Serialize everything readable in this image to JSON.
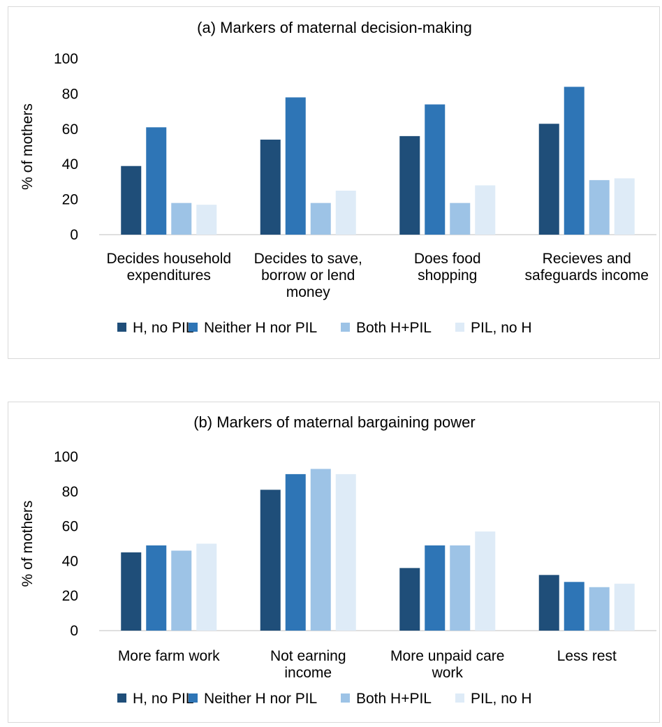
{
  "colors": {
    "series": [
      "#1f4e79",
      "#2e75b6",
      "#9dc3e6",
      "#deebf7"
    ],
    "axis": "#bfbfbf",
    "border": "#d9d9d9"
  },
  "chart_data": [
    {
      "type": "bar",
      "title": "(a) Markers of maternal decision-making",
      "ylabel": "% of mothers",
      "xlabel": "",
      "ylim": [
        0,
        100
      ],
      "yticks": [
        0,
        20,
        40,
        60,
        80,
        100
      ],
      "grid": false,
      "legend": "bottom",
      "categories": [
        [
          "Decides household",
          "expenditures"
        ],
        [
          "Decides to save,",
          "borrow or lend",
          "money"
        ],
        [
          "Does food",
          "shopping"
        ],
        [
          "Recieves and",
          "safeguards income"
        ]
      ],
      "series": [
        {
          "name": "H, no PIL",
          "values": [
            39,
            54,
            56,
            63
          ]
        },
        {
          "name": "Neither H nor PIL",
          "values": [
            61,
            78,
            74,
            84
          ]
        },
        {
          "name": "Both H+PIL",
          "values": [
            18,
            18,
            18,
            31
          ]
        },
        {
          "name": "PIL, no H",
          "values": [
            17,
            25,
            28,
            32
          ]
        }
      ]
    },
    {
      "type": "bar",
      "title": "(b) Markers of maternal bargaining power",
      "ylabel": "% of mothers",
      "xlabel": "",
      "ylim": [
        0,
        100
      ],
      "yticks": [
        0,
        20,
        40,
        60,
        80,
        100
      ],
      "grid": false,
      "legend": "bottom",
      "categories": [
        [
          "More farm work"
        ],
        [
          "Not earning",
          "income"
        ],
        [
          "More unpaid care",
          "work"
        ],
        [
          "Less rest"
        ]
      ],
      "series": [
        {
          "name": "H, no PIL",
          "values": [
            45,
            81,
            36,
            32
          ]
        },
        {
          "name": "Neither H nor PIL",
          "values": [
            49,
            90,
            49,
            28
          ]
        },
        {
          "name": "Both H+PIL",
          "values": [
            46,
            93,
            49,
            25
          ]
        },
        {
          "name": "PIL, no H",
          "values": [
            50,
            90,
            57,
            27
          ]
        }
      ]
    }
  ]
}
